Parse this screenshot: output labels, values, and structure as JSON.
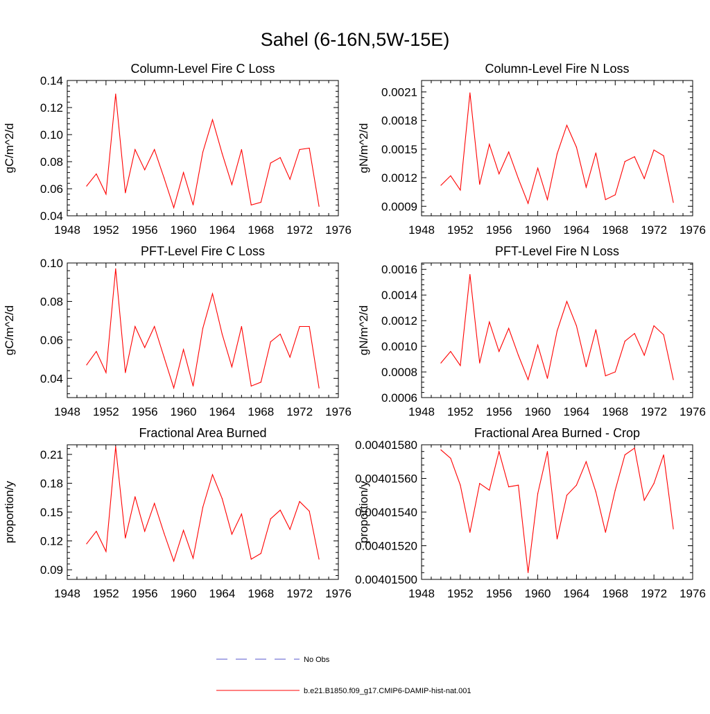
{
  "figure": {
    "title": "Sahel (6-16N,5W-15E)"
  },
  "legend": {
    "entries": [
      {
        "label": "No Obs",
        "color": "#5555cc",
        "style": "dashed"
      },
      {
        "label": "b.e21.B1850.f09_g17.CMIP6-DAMIP-hist-nat.001",
        "color": "#ff0000",
        "style": "solid"
      }
    ]
  },
  "chart_data": [
    {
      "type": "line",
      "title": "Column-Level Fire C Loss",
      "ylabel": "gC/m^2/d",
      "xlim": [
        1948,
        1976
      ],
      "ylim": [
        0.04,
        0.14
      ],
      "xticks": [
        "1948",
        "1952",
        "1956",
        "1960",
        "1964",
        "1968",
        "1972",
        "1976"
      ],
      "yticks": [
        "0.04",
        "0.06",
        "0.08",
        "0.10",
        "0.12",
        "0.14"
      ],
      "x": [
        1950,
        1951,
        1952,
        1953,
        1954,
        1955,
        1956,
        1957,
        1958,
        1959,
        1960,
        1961,
        1962,
        1963,
        1964,
        1965,
        1966,
        1967,
        1968,
        1969,
        1970,
        1971,
        1972,
        1973,
        1974
      ],
      "series": [
        {
          "name": "b.e21.B1850.f09_g17.CMIP6-DAMIP-hist-nat.001",
          "color": "#ff0000",
          "values": [
            0.062,
            0.071,
            0.056,
            0.13,
            0.057,
            0.089,
            0.074,
            0.089,
            0.068,
            0.046,
            0.072,
            0.048,
            0.087,
            0.111,
            0.086,
            0.063,
            0.089,
            0.048,
            0.05,
            0.079,
            0.083,
            0.067,
            0.089,
            0.09,
            0.047
          ]
        }
      ]
    },
    {
      "type": "line",
      "title": "Column-Level Fire N Loss",
      "ylabel": "gN/m^2/d",
      "xlim": [
        1948,
        1976
      ],
      "ylim": [
        0.0008,
        0.00222
      ],
      "xticks": [
        "1948",
        "1952",
        "1956",
        "1960",
        "1964",
        "1968",
        "1972",
        "1976"
      ],
      "yticks": [
        "0.0009",
        "0.0012",
        "0.0015",
        "0.0018",
        "0.0021"
      ],
      "x": [
        1950,
        1951,
        1952,
        1953,
        1954,
        1955,
        1956,
        1957,
        1958,
        1959,
        1960,
        1961,
        1962,
        1963,
        1964,
        1965,
        1966,
        1967,
        1968,
        1969,
        1970,
        1971,
        1972,
        1973,
        1974
      ],
      "series": [
        {
          "name": "b.e21.B1850.f09_g17.CMIP6-DAMIP-hist-nat.001",
          "color": "#ff0000",
          "values": [
            0.00112,
            0.00122,
            0.00107,
            0.00209,
            0.00113,
            0.00155,
            0.00124,
            0.00147,
            0.00119,
            0.00093,
            0.0013,
            0.00097,
            0.00145,
            0.00175,
            0.00152,
            0.0011,
            0.00146,
            0.00097,
            0.00102,
            0.00137,
            0.00142,
            0.00119,
            0.00149,
            0.00143,
            0.00094
          ]
        }
      ]
    },
    {
      "type": "line",
      "title": "PFT-Level Fire C Loss",
      "ylabel": "gC/m^2/d",
      "xlim": [
        1948,
        1976
      ],
      "ylim": [
        0.03,
        0.1
      ],
      "xticks": [
        "1948",
        "1952",
        "1956",
        "1960",
        "1964",
        "1968",
        "1972",
        "1976"
      ],
      "yticks": [
        "0.04",
        "0.06",
        "0.08",
        "0.10"
      ],
      "x": [
        1950,
        1951,
        1952,
        1953,
        1954,
        1955,
        1956,
        1957,
        1958,
        1959,
        1960,
        1961,
        1962,
        1963,
        1964,
        1965,
        1966,
        1967,
        1968,
        1969,
        1970,
        1971,
        1972,
        1973,
        1974
      ],
      "series": [
        {
          "name": "b.e21.B1850.f09_g17.CMIP6-DAMIP-hist-nat.001",
          "color": "#ff0000",
          "values": [
            0.047,
            0.054,
            0.043,
            0.097,
            0.043,
            0.067,
            0.056,
            0.067,
            0.051,
            0.035,
            0.055,
            0.036,
            0.066,
            0.084,
            0.063,
            0.046,
            0.067,
            0.036,
            0.038,
            0.059,
            0.063,
            0.051,
            0.067,
            0.067,
            0.035
          ]
        }
      ]
    },
    {
      "type": "line",
      "title": "PFT-Level Fire N Loss",
      "ylabel": "gN/m^2/d",
      "xlim": [
        1948,
        1976
      ],
      "ylim": [
        0.0006,
        0.00165
      ],
      "xticks": [
        "1948",
        "1952",
        "1956",
        "1960",
        "1964",
        "1968",
        "1972",
        "1976"
      ],
      "yticks": [
        "0.0006",
        "0.0008",
        "0.0010",
        "0.0012",
        "0.0014",
        "0.0016"
      ],
      "x": [
        1950,
        1951,
        1952,
        1953,
        1954,
        1955,
        1956,
        1957,
        1958,
        1959,
        1960,
        1961,
        1962,
        1963,
        1964,
        1965,
        1966,
        1967,
        1968,
        1969,
        1970,
        1971,
        1972,
        1973,
        1974
      ],
      "series": [
        {
          "name": "b.e21.B1850.f09_g17.CMIP6-DAMIP-hist-nat.001",
          "color": "#ff0000",
          "values": [
            0.00087,
            0.00096,
            0.00085,
            0.00156,
            0.00087,
            0.00119,
            0.00096,
            0.00114,
            0.00093,
            0.00074,
            0.00101,
            0.00075,
            0.00112,
            0.00135,
            0.00116,
            0.00084,
            0.00113,
            0.00077,
            0.0008,
            0.00104,
            0.0011,
            0.00093,
            0.00116,
            0.00109,
            0.00074
          ]
        }
      ]
    },
    {
      "type": "line",
      "title": "Fractional Area Burned",
      "ylabel": "proportion/y",
      "xlim": [
        1948,
        1976
      ],
      "ylim": [
        0.08,
        0.22
      ],
      "xticks": [
        "1948",
        "1952",
        "1956",
        "1960",
        "1964",
        "1968",
        "1972",
        "1976"
      ],
      "yticks": [
        "0.09",
        "0.12",
        "0.15",
        "0.18",
        "0.21"
      ],
      "x": [
        1950,
        1951,
        1952,
        1953,
        1954,
        1955,
        1956,
        1957,
        1958,
        1959,
        1960,
        1961,
        1962,
        1963,
        1964,
        1965,
        1966,
        1967,
        1968,
        1969,
        1970,
        1971,
        1972,
        1973,
        1974
      ],
      "series": [
        {
          "name": "b.e21.B1850.f09_g17.CMIP6-DAMIP-hist-nat.001",
          "color": "#ff0000",
          "values": [
            0.117,
            0.13,
            0.109,
            0.218,
            0.123,
            0.166,
            0.13,
            0.159,
            0.128,
            0.099,
            0.131,
            0.102,
            0.155,
            0.189,
            0.164,
            0.127,
            0.148,
            0.101,
            0.107,
            0.143,
            0.152,
            0.132,
            0.161,
            0.151,
            0.101
          ]
        }
      ]
    },
    {
      "type": "line",
      "title": "Fractional Area Burned - Crop",
      "ylabel": "proportion/y",
      "xlim": [
        1948,
        1976
      ],
      "ylim": [
        0.004015,
        0.0040158
      ],
      "xticks": [
        "1948",
        "1952",
        "1956",
        "1960",
        "1964",
        "1968",
        "1972",
        "1976"
      ],
      "yticks": [
        "0.00401500",
        "0.00401520",
        "0.00401540",
        "0.00401560",
        "0.00401580"
      ],
      "x": [
        1950,
        1951,
        1952,
        1953,
        1954,
        1955,
        1956,
        1957,
        1958,
        1959,
        1960,
        1961,
        1962,
        1963,
        1964,
        1965,
        1966,
        1967,
        1968,
        1969,
        1970,
        1971,
        1972,
        1973,
        1974
      ],
      "series": [
        {
          "name": "b.e21.B1850.f09_g17.CMIP6-DAMIP-hist-nat.001",
          "color": "#ff0000",
          "values": [
            0.00401577,
            0.00401572,
            0.00401556,
            0.00401528,
            0.00401557,
            0.00401553,
            0.00401576,
            0.00401555,
            0.00401556,
            0.00401504,
            0.00401551,
            0.00401576,
            0.00401524,
            0.0040155,
            0.00401556,
            0.0040157,
            0.00401552,
            0.00401528,
            0.00401553,
            0.00401574,
            0.00401578,
            0.00401547,
            0.00401557,
            0.00401574,
            0.0040153
          ]
        }
      ]
    }
  ]
}
